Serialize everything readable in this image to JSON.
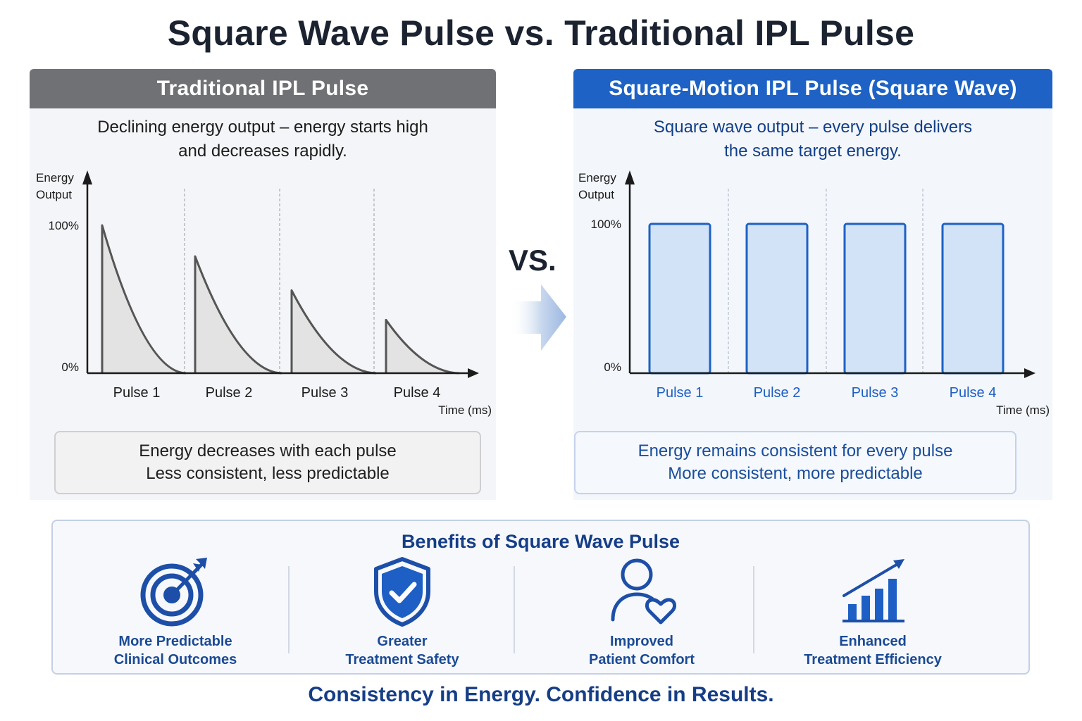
{
  "title": "Square Wave Pulse vs. Traditional IPL Pulse",
  "vs_label": "VS.",
  "left_panel": {
    "header": "Traditional IPL Pulse",
    "subtitle": "Declining energy output – energy starts high\nand decreases rapidly.",
    "summary_line1": "Energy decreases with each pulse",
    "summary_line2": "Less consistent, less predictable"
  },
  "right_panel": {
    "header": "Square-Motion IPL Pulse (Square Wave)",
    "subtitle": "Square wave output – every pulse delivers\nthe same target energy.",
    "summary_line1": "Energy remains consistent for every pulse",
    "summary_line2": "More consistent, more predictable"
  },
  "chart_data": [
    {
      "type": "area",
      "ylabel": "Energy Output",
      "xlabel": "Time (ms)",
      "y_ticks": [
        "100%",
        "0%"
      ],
      "ylim": [
        0,
        100
      ],
      "categories": [
        "Pulse 1",
        "Pulse 2",
        "Pulse 3",
        "Pulse 4"
      ],
      "peak_values": [
        100,
        79,
        56,
        36
      ],
      "shape": "exponential-decay",
      "colors": {
        "line": "#555555",
        "fill": "#e3e3e3"
      }
    },
    {
      "type": "bar",
      "ylabel": "Energy Output",
      "xlabel": "Time (ms)",
      "y_ticks": [
        "100%",
        "0%"
      ],
      "ylim": [
        0,
        100
      ],
      "categories": [
        "Pulse 1",
        "Pulse 2",
        "Pulse 3",
        "Pulse 4"
      ],
      "values": [
        100,
        100,
        100,
        100
      ],
      "colors": {
        "stroke": "#1d62c4",
        "fill": "#d2e3f7"
      }
    }
  ],
  "benefits": {
    "title": "Benefits of Square Wave Pulse",
    "items": [
      {
        "icon": "target-icon",
        "label": "More Predictable\nClinical Outcomes"
      },
      {
        "icon": "shield-check-icon",
        "label": "Greater\nTreatment Safety"
      },
      {
        "icon": "person-heart-icon",
        "label": "Improved\nPatient Comfort"
      },
      {
        "icon": "growth-chart-icon",
        "label": "Enhanced\nTreatment Efficiency"
      }
    ]
  },
  "tagline": "Consistency in Energy. Confidence in Results.",
  "colors": {
    "brand_blue": "#1d62c4",
    "dark_navy": "#163e86",
    "gray_header": "#707174"
  }
}
